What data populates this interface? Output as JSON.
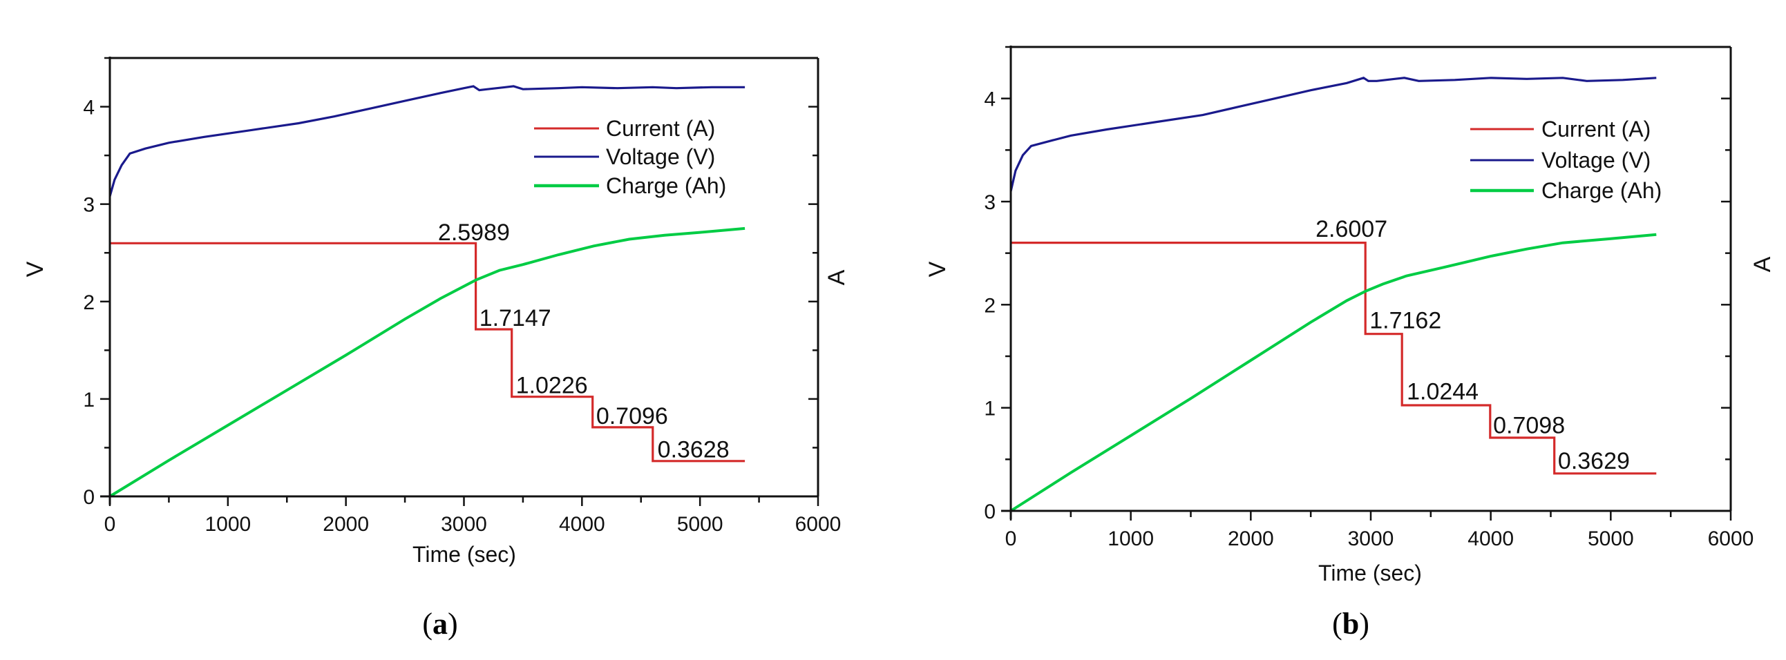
{
  "chart_data": [
    {
      "id": "a",
      "type": "line",
      "caption": "a",
      "title": "",
      "xlabel": "Time (sec)",
      "ylabel": "V",
      "ylabel_right": "A",
      "xlim": [
        0,
        6000
      ],
      "ylim": [
        0,
        4.5
      ],
      "xticks": [
        0,
        1000,
        2000,
        3000,
        4000,
        5000,
        6000
      ],
      "xtick_labels": [
        "0",
        "1000",
        "2000",
        "3000",
        "4000",
        "5000",
        "6000"
      ],
      "yticks": [
        0,
        1,
        2,
        3,
        4
      ],
      "ytick_labels": [
        "0",
        "1",
        "2",
        "3",
        "4"
      ],
      "grid": false,
      "legend_position": "upper right",
      "legend": [
        {
          "label": "Current (A)",
          "color": "#d42a2a"
        },
        {
          "label": "Voltage (V)",
          "color": "#1a1a8c"
        },
        {
          "label": "Charge (Ah)",
          "color": "#00cc44"
        }
      ],
      "series": [
        {
          "name": "Current (A)",
          "color": "#d42a2a",
          "step": true,
          "x": [
            0,
            3100,
            3100,
            3405,
            3405,
            4090,
            4090,
            4600,
            4600,
            5380
          ],
          "y": [
            2.5989,
            2.5989,
            1.7147,
            1.7147,
            1.0226,
            1.0226,
            0.7096,
            0.7096,
            0.3628,
            0.3628
          ]
        },
        {
          "name": "Voltage (V)",
          "color": "#1a1a8c",
          "x": [
            0,
            40,
            100,
            170,
            300,
            500,
            800,
            1200,
            1600,
            1900,
            2200,
            2500,
            2800,
            3000,
            3080,
            3130,
            3200,
            3350,
            3420,
            3500,
            3800,
            4000,
            4300,
            4600,
            4800,
            5100,
            5380
          ],
          "y": [
            3.08,
            3.25,
            3.4,
            3.52,
            3.57,
            3.63,
            3.69,
            3.76,
            3.83,
            3.9,
            3.98,
            4.06,
            4.14,
            4.19,
            4.21,
            4.17,
            4.18,
            4.2,
            4.21,
            4.18,
            4.19,
            4.2,
            4.19,
            4.2,
            4.19,
            4.2,
            4.2
          ]
        },
        {
          "name": "Charge (Ah)",
          "color": "#00cc44",
          "x": [
            0,
            500,
            1000,
            1500,
            2000,
            2500,
            2800,
            3100,
            3300,
            3500,
            3800,
            4100,
            4400,
            4700,
            5000,
            5380
          ],
          "y": [
            0,
            0.37,
            0.73,
            1.09,
            1.45,
            1.82,
            2.03,
            2.22,
            2.32,
            2.38,
            2.48,
            2.57,
            2.64,
            2.68,
            2.71,
            2.75
          ]
        }
      ],
      "annotations": [
        {
          "text": "2.5989",
          "x": 2780,
          "y": 2.63
        },
        {
          "text": "1.7147",
          "x": 3130,
          "y": 1.75
        },
        {
          "text": "1.0226",
          "x": 3440,
          "y": 1.06
        },
        {
          "text": "0.7096",
          "x": 4120,
          "y": 0.745
        },
        {
          "text": "0.3628",
          "x": 4640,
          "y": 0.4
        }
      ]
    },
    {
      "id": "b",
      "type": "line",
      "caption": "b",
      "title": "",
      "xlabel": "Time (sec)",
      "ylabel": "V",
      "ylabel_right": "A",
      "xlim": [
        0,
        6000
      ],
      "ylim": [
        0,
        4.5
      ],
      "xticks": [
        0,
        1000,
        2000,
        3000,
        4000,
        5000,
        6000
      ],
      "xtick_labels": [
        "0",
        "1000",
        "2000",
        "3000",
        "4000",
        "5000",
        "6000"
      ],
      "yticks": [
        0,
        1,
        2,
        3,
        4
      ],
      "ytick_labels": [
        "0",
        "1",
        "2",
        "3",
        "4"
      ],
      "grid": false,
      "legend_position": "upper right",
      "legend": [
        {
          "label": "Current (A)",
          "color": "#d42a2a"
        },
        {
          "label": "Voltage (V)",
          "color": "#1a1a8c"
        },
        {
          "label": "Charge (Ah)",
          "color": "#00cc44"
        }
      ],
      "series": [
        {
          "name": "Current (A)",
          "color": "#d42a2a",
          "step": true,
          "x": [
            0,
            2955,
            2955,
            3260,
            3260,
            3995,
            3995,
            4530,
            4530,
            5380
          ],
          "y": [
            2.6007,
            2.6007,
            1.7162,
            1.7162,
            1.0244,
            1.0244,
            0.7098,
            0.7098,
            0.3629,
            0.3629
          ]
        },
        {
          "name": "Voltage (V)",
          "color": "#1a1a8c",
          "x": [
            0,
            40,
            100,
            170,
            300,
            500,
            800,
            1200,
            1600,
            1900,
            2200,
            2500,
            2800,
            2940,
            2980,
            3050,
            3200,
            3280,
            3400,
            3700,
            4000,
            4300,
            4600,
            4800,
            5100,
            5380
          ],
          "y": [
            3.1,
            3.3,
            3.45,
            3.54,
            3.58,
            3.64,
            3.7,
            3.77,
            3.84,
            3.92,
            4.0,
            4.08,
            4.15,
            4.2,
            4.17,
            4.17,
            4.19,
            4.2,
            4.17,
            4.18,
            4.2,
            4.19,
            4.2,
            4.17,
            4.18,
            4.2
          ]
        },
        {
          "name": "Charge (Ah)",
          "color": "#00cc44",
          "x": [
            0,
            500,
            1000,
            1500,
            2000,
            2500,
            2800,
            2955,
            3100,
            3300,
            3600,
            4000,
            4300,
            4600,
            5000,
            5380
          ],
          "y": [
            0,
            0.37,
            0.73,
            1.09,
            1.46,
            1.83,
            2.04,
            2.13,
            2.2,
            2.28,
            2.36,
            2.47,
            2.54,
            2.6,
            2.64,
            2.68
          ]
        }
      ],
      "annotations": [
        {
          "text": "2.6007",
          "x": 2540,
          "y": 2.66
        },
        {
          "text": "1.7162",
          "x": 2990,
          "y": 1.77
        },
        {
          "text": "1.0244",
          "x": 3300,
          "y": 1.08
        },
        {
          "text": "0.7098",
          "x": 4020,
          "y": 0.755
        },
        {
          "text": "0.3629",
          "x": 4560,
          "y": 0.41
        }
      ]
    }
  ],
  "panels": [
    {
      "caption_open": "(",
      "caption_letter": "a",
      "caption_close": ")",
      "xlabel": "Time (sec)",
      "ylabel": "V",
      "ylabel_right": "A"
    },
    {
      "caption_open": "(",
      "caption_letter": "b",
      "caption_close": ")",
      "xlabel": "Time (sec)",
      "ylabel": "V",
      "ylabel_right": "A"
    }
  ]
}
